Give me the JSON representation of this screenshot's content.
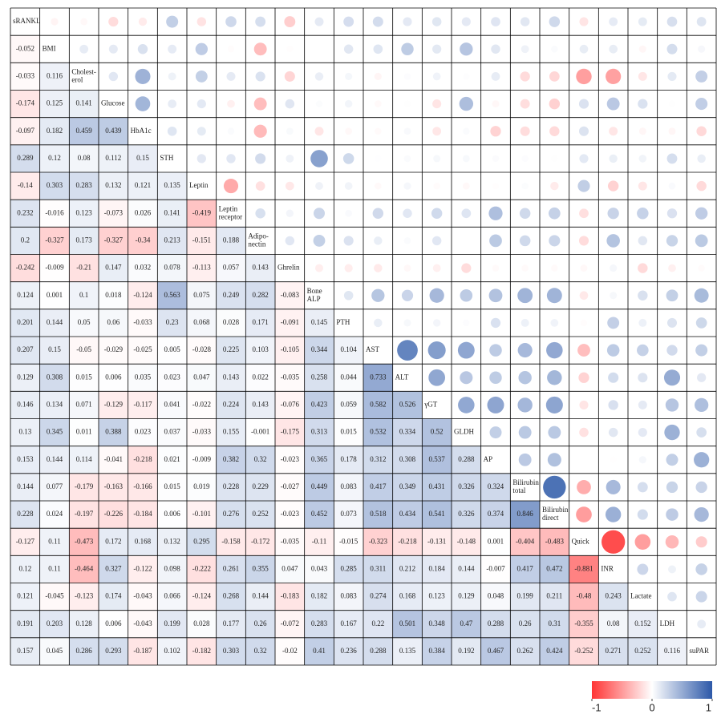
{
  "chart_data": {
    "type": "correlogram",
    "labels": [
      [
        "sRANKL"
      ],
      [
        "BMI"
      ],
      [
        "Cholest-",
        "erol"
      ],
      [
        "Glucose"
      ],
      [
        "HbA1c"
      ],
      [
        "STH"
      ],
      [
        "Leptin"
      ],
      [
        "Leptin",
        "receptor"
      ],
      [
        "Adipo-",
        "nectin"
      ],
      [
        "Ghrelin"
      ],
      [
        "Bone",
        "ALP"
      ],
      [
        "PTH"
      ],
      [
        "AST"
      ],
      [
        "ALT"
      ],
      [
        "γGT"
      ],
      [
        "GLDH"
      ],
      [
        "AP"
      ],
      [
        "Bilirubin",
        "total"
      ],
      [
        "Bilirubin",
        "direct"
      ],
      [
        "Quick"
      ],
      [
        "INR"
      ],
      [
        "Lactate"
      ],
      [
        "LDH"
      ],
      [
        "suPAR"
      ]
    ],
    "values": [
      [],
      [
        -0.052
      ],
      [
        -0.033,
        0.116
      ],
      [
        -0.174,
        0.125,
        0.141
      ],
      [
        -0.097,
        0.182,
        0.459,
        0.439
      ],
      [
        0.289,
        0.12,
        0.08,
        0.112,
        0.15
      ],
      [
        -0.14,
        0.303,
        0.283,
        0.132,
        0.121,
        0.135
      ],
      [
        0.232,
        -0.016,
        0.123,
        -0.073,
        0.026,
        0.141,
        -0.419
      ],
      [
        0.2,
        -0.327,
        0.173,
        -0.327,
        -0.34,
        0.213,
        -0.151,
        0.188
      ],
      [
        -0.242,
        -0.009,
        -0.21,
        0.147,
        0.032,
        0.078,
        -0.113,
        0.057,
        0.143
      ],
      [
        0.124,
        0.001,
        0.1,
        0.018,
        -0.124,
        0.563,
        0.075,
        0.249,
        0.282,
        -0.083
      ],
      [
        0.201,
        0.144,
        0.05,
        0.06,
        -0.033,
        0.23,
        0.068,
        0.028,
        0.171,
        -0.091,
        0.145
      ],
      [
        0.207,
        0.15,
        -0.05,
        -0.029,
        -0.025,
        0.005,
        -0.028,
        0.225,
        0.103,
        -0.105,
        0.344,
        0.104
      ],
      [
        0.129,
        0.308,
        0.015,
        0.006,
        0.035,
        0.023,
        0.047,
        0.143,
        0.022,
        -0.035,
        0.258,
        0.044,
        0.733
      ],
      [
        0.146,
        0.134,
        0.071,
        -0.129,
        -0.117,
        0.041,
        -0.022,
        0.224,
        0.143,
        -0.076,
        0.423,
        0.059,
        0.582,
        0.526
      ],
      [
        0.13,
        0.345,
        0.011,
        0.388,
        0.023,
        0.037,
        -0.033,
        0.155,
        -0.001,
        -0.175,
        0.313,
        0.015,
        0.532,
        0.334,
        0.52
      ],
      [
        0.153,
        0.144,
        0.114,
        -0.041,
        -0.218,
        0.021,
        -0.009,
        0.382,
        0.32,
        -0.023,
        0.365,
        0.178,
        0.312,
        0.308,
        0.537,
        0.288
      ],
      [
        0.144,
        0.077,
        -0.179,
        -0.163,
        -0.166,
        0.015,
        0.019,
        0.228,
        0.229,
        -0.027,
        0.449,
        0.083,
        0.417,
        0.349,
        0.431,
        0.326,
        0.324
      ],
      [
        0.228,
        0.024,
        -0.197,
        -0.226,
        -0.184,
        0.006,
        -0.101,
        0.276,
        0.252,
        -0.023,
        0.452,
        0.073,
        0.518,
        0.434,
        0.541,
        0.326,
        0.374,
        0.846
      ],
      [
        -0.127,
        0.11,
        -0.473,
        0.172,
        0.168,
        0.132,
        0.295,
        -0.158,
        -0.172,
        -0.035,
        -0.11,
        -0.015,
        -0.323,
        -0.218,
        -0.131,
        -0.148,
        0.001,
        -0.404,
        -0.483
      ],
      [
        0.12,
        0.11,
        -0.464,
        0.327,
        -0.122,
        0.098,
        -0.222,
        0.261,
        0.355,
        0.047,
        0.043,
        0.285,
        0.311,
        0.212,
        0.184,
        0.144,
        -0.007,
        0.417,
        0.472,
        -0.881
      ],
      [
        0.121,
        -0.045,
        -0.123,
        0.174,
        -0.043,
        0.066,
        -0.124,
        0.268,
        0.144,
        -0.183,
        0.182,
        0.083,
        0.274,
        0.168,
        0.123,
        0.129,
        0.048,
        0.199,
        0.211,
        -0.48,
        0.243
      ],
      [
        0.191,
        0.203,
        0.128,
        0.006,
        -0.043,
        0.199,
        0.028,
        0.177,
        0.26,
        -0.072,
        0.283,
        0.167,
        0.22,
        0.501,
        0.348,
        0.47,
        0.288,
        0.26,
        0.31,
        -0.355,
        0.08,
        0.152
      ],
      [
        0.157,
        0.045,
        0.286,
        0.293,
        -0.187,
        0.102,
        -0.182,
        0.303,
        0.32,
        -0.02,
        0.41,
        0.236,
        0.288,
        0.135,
        0.384,
        0.192,
        0.467,
        0.262,
        0.424,
        -0.252,
        0.271,
        0.252,
        0.116
      ]
    ],
    "zlim": [
      -1,
      1
    ],
    "zticks": [
      -1,
      0,
      1
    ],
    "colors": [
      "#ff3535",
      "#ffffff",
      "#2c58a8"
    ]
  }
}
